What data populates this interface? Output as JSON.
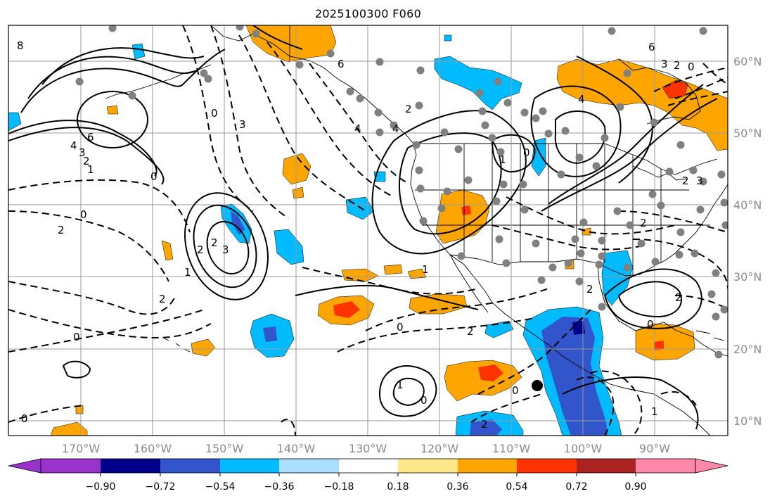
{
  "title": "2025100300 F060",
  "map": {
    "lon_ticks": [
      "170°W",
      "160°W",
      "150°W",
      "140°W",
      "130°W",
      "120°W",
      "110°W",
      "100°W",
      "90°W"
    ],
    "lat_ticks": [
      "60°N",
      "50°N",
      "40°N",
      "30°N",
      "20°N",
      "10°N"
    ],
    "colors": {
      "frame": "#000000",
      "grid": "#9a9a9a",
      "axis_label": "#8a8a8a",
      "station_dot": "#808080",
      "marker": "#000000"
    },
    "contour_labels": [
      "8",
      "6",
      "4",
      "3",
      "2",
      "1",
      "0",
      "0",
      "3",
      "4",
      "2",
      "6",
      "4",
      "2",
      "0",
      "6",
      "4",
      "3",
      "2",
      "0",
      "1",
      "0",
      "2",
      "3",
      "2",
      "2",
      "1",
      "2",
      "0",
      "2",
      "1",
      "0",
      "0",
      "1",
      "0",
      "2",
      "0",
      "1",
      "2",
      "2",
      "3",
      "2",
      "0"
    ]
  },
  "colorbar": {
    "ticks": [
      "−0.90",
      "−0.72",
      "−0.54",
      "−0.36",
      "−0.18",
      "0.18",
      "0.36",
      "0.54",
      "0.72",
      "0.90"
    ],
    "colors": [
      "#9933cc",
      "#000088",
      "#3355cc",
      "#00bbff",
      "#aaddff",
      "#ffffff",
      "#ffe88a",
      "#ffa500",
      "#ff3300",
      "#aa2222",
      "#ff88aa"
    ]
  }
}
